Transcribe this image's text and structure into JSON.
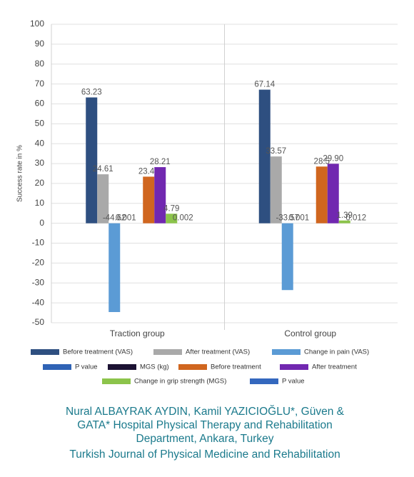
{
  "chart_data": {
    "type": "bar",
    "y_label": "Success rate in %",
    "categories": [
      "Traction group",
      "Control group"
    ],
    "ylim": [
      -50,
      100
    ],
    "yticks": [
      -50,
      -40,
      -30,
      -20,
      -10,
      0,
      10,
      20,
      30,
      40,
      50,
      60,
      70,
      80,
      90,
      100
    ],
    "grid": true,
    "series": [
      {
        "name": "Before treatment (VAS)",
        "color": "#2e4f80",
        "values": [
          63.23,
          67.14
        ],
        "value_labels": [
          "63.23",
          "67.14"
        ]
      },
      {
        "name": "After treatment (VAS)",
        "color": "#a9a9a9",
        "values": [
          24.61,
          33.57
        ],
        "value_labels": [
          "24.61",
          "33.57"
        ]
      },
      {
        "name": "Change in pain (VAS)",
        "color": "#5b9bd5",
        "values": [
          -44.62,
          -33.57
        ],
        "value_labels": [
          "-44.62",
          "-33.57"
        ]
      },
      {
        "name": "P value",
        "color": "#2f63b5",
        "values": [
          0.001,
          0.001
        ],
        "value_labels": [
          "0.001",
          "0.001"
        ]
      },
      {
        "name": "MGS (kg)",
        "color": "#1c1233",
        "values": [
          null,
          null
        ],
        "value_labels": [
          null,
          null
        ]
      },
      {
        "name": "Before treatment",
        "color": "#d0661f",
        "values": [
          23.42,
          28.5
        ],
        "value_labels": [
          "23.42",
          "28.5"
        ]
      },
      {
        "name": "After treatment",
        "color": "#7128b0",
        "values": [
          28.21,
          29.9
        ],
        "value_labels": [
          "28.21",
          "29.90"
        ]
      },
      {
        "name": "Change in grip strength (MGS)",
        "color": "#8cc44b",
        "values": [
          4.79,
          1.39
        ],
        "value_labels": [
          "4.79",
          "1.39"
        ]
      },
      {
        "name": "P value",
        "color": "#3468be",
        "values": [
          0.002,
          0.012
        ],
        "value_labels": [
          "0.002",
          "0.012"
        ]
      }
    ]
  },
  "footer": {
    "lines": [
      "Nural ALBAYRAK AYDIN, Kamil YAZICIOĞLU*, Güven &",
      "GATA* Hospital Physical Therapy and Rehabilitation",
      "Department, Ankara, Turkey",
      "Turkish Journal of Physical Medicine and Rehabilitation"
    ]
  }
}
